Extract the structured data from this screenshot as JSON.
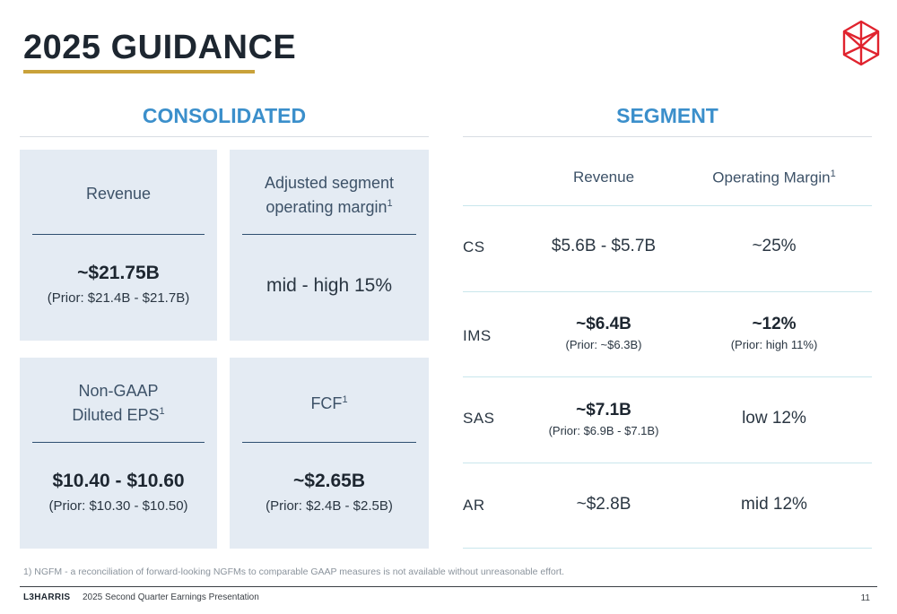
{
  "title": "2025 GUIDANCE",
  "consolidated": {
    "heading": "CONSOLIDATED",
    "cards": [
      {
        "label_lines": [
          "Revenue"
        ],
        "sup": "",
        "value": "~$21.75B",
        "prior": "(Prior: $21.4B - $21.7B)"
      },
      {
        "label_lines": [
          "Adjusted segment",
          "operating margin"
        ],
        "sup": "1",
        "value": "mid - high 15%",
        "prior": ""
      },
      {
        "label_lines": [
          "Non-GAAP",
          "Diluted EPS"
        ],
        "sup": "1",
        "value": "$10.40 - $10.60",
        "prior": "(Prior: $10.30 - $10.50)"
      },
      {
        "label_lines": [
          "FCF"
        ],
        "sup": "1",
        "value": "~$2.65B",
        "prior": "(Prior: $2.4B - $2.5B)"
      }
    ]
  },
  "segment": {
    "heading": "SEGMENT",
    "col_revenue": "Revenue",
    "col_margin": "Operating Margin",
    "col_margin_sup": "1",
    "rows": [
      {
        "name": "CS",
        "revenue": "$5.6B - $5.7B",
        "revenue_prior": "",
        "margin": "~25%",
        "margin_prior": ""
      },
      {
        "name": "IMS",
        "revenue": "~$6.4B",
        "revenue_prior": "(Prior: ~$6.3B)",
        "margin": "~12%",
        "margin_prior": "(Prior: high 11%)"
      },
      {
        "name": "SAS",
        "revenue": "~$7.1B",
        "revenue_prior": "(Prior: $6.9B - $7.1B)",
        "margin": "low 12%",
        "margin_prior": ""
      },
      {
        "name": "AR",
        "revenue": "~$2.8B",
        "revenue_prior": "",
        "margin": "mid 12%",
        "margin_prior": ""
      }
    ]
  },
  "footnote": "1) NGFM - a reconciliation of forward-looking NGFMs to comparable GAAP measures is not available without unreasonable effort.",
  "footer": {
    "brand": "L3HARRIS",
    "text": "2025 Second Quarter Earnings Presentation",
    "page": "11"
  },
  "colors": {
    "accent_blue": "#3b8fcb",
    "gold": "#c9a23a",
    "logo_red": "#e0232e",
    "card_bg": "#e4ebf3"
  },
  "icons": {
    "logo": "l3harris-logo-icon"
  }
}
